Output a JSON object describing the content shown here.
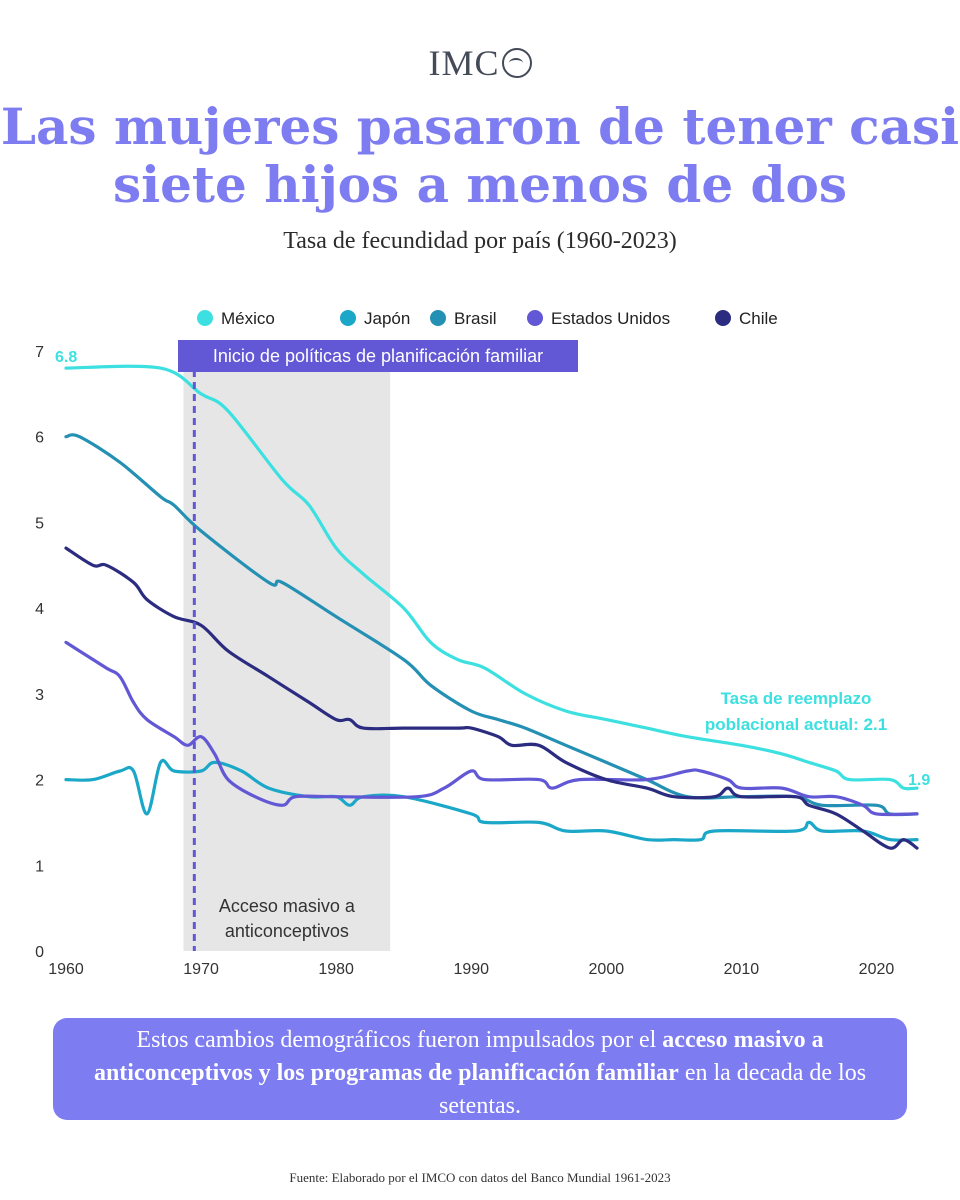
{
  "brand": {
    "name": "IMC"
  },
  "title": {
    "line1": "Las mujeres pasaron de tener casi",
    "line2": "siete hijos a menos de dos"
  },
  "subtitle": "Tasa de fecundidad por país (1960-2023)",
  "note": {
    "part1": "Estos cambios demográficos fueron impulsados por el ",
    "bold1": "acceso masivo a anticonceptivos y los programas de planificación familiar",
    "part2": " en la decada de los setentas."
  },
  "source": "Fuente: Elaborado por el IMCO con datos del Banco Mundial 1961-2023",
  "chart_data": {
    "type": "line",
    "xlim": [
      1960,
      2023
    ],
    "ylim": [
      0,
      7
    ],
    "x_ticks": [
      1960,
      1970,
      1980,
      1990,
      2000,
      2010,
      2020
    ],
    "y_ticks": [
      0,
      1,
      2,
      3,
      4,
      5,
      6,
      7
    ],
    "grid": false,
    "legend_position": "top",
    "series": [
      {
        "name": "México",
        "color": "#3de0e0",
        "points": [
          [
            1960,
            6.8
          ],
          [
            1967,
            6.8
          ],
          [
            1970,
            6.5
          ],
          [
            1972,
            6.3
          ],
          [
            1976,
            5.5
          ],
          [
            1978,
            5.2
          ],
          [
            1980,
            4.7
          ],
          [
            1982,
            4.4
          ],
          [
            1985,
            4.0
          ],
          [
            1987,
            3.6
          ],
          [
            1989,
            3.4
          ],
          [
            1991,
            3.3
          ],
          [
            1994,
            3.0
          ],
          [
            1997,
            2.8
          ],
          [
            2000,
            2.7
          ],
          [
            2003,
            2.6
          ],
          [
            2006,
            2.5
          ],
          [
            2010,
            2.4
          ],
          [
            2013,
            2.3
          ],
          [
            2015,
            2.2
          ],
          [
            2017,
            2.1
          ],
          [
            2018,
            2.0
          ],
          [
            2021,
            2.0
          ],
          [
            2022,
            1.9
          ],
          [
            2023,
            1.9
          ]
        ]
      },
      {
        "name": "Japón",
        "color": "#1ba8c8",
        "points": [
          [
            1960,
            2.0
          ],
          [
            1962,
            2.0
          ],
          [
            1964,
            2.1
          ],
          [
            1965,
            2.1
          ],
          [
            1966,
            1.6
          ],
          [
            1967,
            2.2
          ],
          [
            1968,
            2.1
          ],
          [
            1970,
            2.1
          ],
          [
            1971,
            2.2
          ],
          [
            1973,
            2.1
          ],
          [
            1975,
            1.9
          ],
          [
            1978,
            1.8
          ],
          [
            1980,
            1.8
          ],
          [
            1981,
            1.7
          ],
          [
            1982,
            1.8
          ],
          [
            1985,
            1.8
          ],
          [
            1990,
            1.6
          ],
          [
            1991,
            1.5
          ],
          [
            1995,
            1.5
          ],
          [
            1997,
            1.4
          ],
          [
            2000,
            1.4
          ],
          [
            2003,
            1.3
          ],
          [
            2005,
            1.3
          ],
          [
            2007,
            1.3
          ],
          [
            2008,
            1.4
          ],
          [
            2014,
            1.4
          ],
          [
            2015,
            1.5
          ],
          [
            2016,
            1.4
          ],
          [
            2019,
            1.4
          ],
          [
            2021,
            1.3
          ],
          [
            2023,
            1.3
          ]
        ]
      },
      {
        "name": "Brasil",
        "color": "#2390b4",
        "points": [
          [
            1960,
            6.0
          ],
          [
            1961,
            6.0
          ],
          [
            1964,
            5.7
          ],
          [
            1967,
            5.3
          ],
          [
            1968,
            5.2
          ],
          [
            1970,
            4.9
          ],
          [
            1975,
            4.3
          ],
          [
            1976,
            4.3
          ],
          [
            1980,
            3.9
          ],
          [
            1985,
            3.4
          ],
          [
            1987,
            3.1
          ],
          [
            1990,
            2.8
          ],
          [
            1992,
            2.7
          ],
          [
            1994,
            2.6
          ],
          [
            1997,
            2.4
          ],
          [
            2000,
            2.2
          ],
          [
            2003,
            2.0
          ],
          [
            2006,
            1.8
          ],
          [
            2010,
            1.8
          ],
          [
            2014,
            1.8
          ],
          [
            2016,
            1.7
          ],
          [
            2020,
            1.7
          ],
          [
            2021,
            1.6
          ],
          [
            2023,
            1.6
          ]
        ]
      },
      {
        "name": "Estados Unidos",
        "color": "#6257d4",
        "points": [
          [
            1960,
            3.6
          ],
          [
            1961,
            3.5
          ],
          [
            1963,
            3.3
          ],
          [
            1964,
            3.2
          ],
          [
            1965,
            2.9
          ],
          [
            1966,
            2.7
          ],
          [
            1968,
            2.5
          ],
          [
            1969,
            2.4
          ],
          [
            1970,
            2.5
          ],
          [
            1971,
            2.3
          ],
          [
            1972,
            2.0
          ],
          [
            1974,
            1.8
          ],
          [
            1976,
            1.7
          ],
          [
            1977,
            1.8
          ],
          [
            1980,
            1.8
          ],
          [
            1986,
            1.8
          ],
          [
            1988,
            1.9
          ],
          [
            1990,
            2.1
          ],
          [
            1991,
            2.0
          ],
          [
            1995,
            2.0
          ],
          [
            1996,
            1.9
          ],
          [
            1998,
            2.0
          ],
          [
            2003,
            2.0
          ],
          [
            2006,
            2.1
          ],
          [
            2007,
            2.1
          ],
          [
            2009,
            2.0
          ],
          [
            2010,
            1.9
          ],
          [
            2013,
            1.9
          ],
          [
            2015,
            1.8
          ],
          [
            2017,
            1.8
          ],
          [
            2019,
            1.7
          ],
          [
            2020,
            1.6
          ],
          [
            2023,
            1.6
          ]
        ]
      },
      {
        "name": "Chile",
        "color": "#2b2c80",
        "points": [
          [
            1960,
            4.7
          ],
          [
            1962,
            4.5
          ],
          [
            1963,
            4.5
          ],
          [
            1965,
            4.3
          ],
          [
            1966,
            4.1
          ],
          [
            1968,
            3.9
          ],
          [
            1970,
            3.8
          ],
          [
            1972,
            3.5
          ],
          [
            1975,
            3.2
          ],
          [
            1978,
            2.9
          ],
          [
            1980,
            2.7
          ],
          [
            1981,
            2.7
          ],
          [
            1982,
            2.6
          ],
          [
            1985,
            2.6
          ],
          [
            1989,
            2.6
          ],
          [
            1990,
            2.6
          ],
          [
            1992,
            2.5
          ],
          [
            1993,
            2.4
          ],
          [
            1995,
            2.4
          ],
          [
            1997,
            2.2
          ],
          [
            2000,
            2.0
          ],
          [
            2003,
            1.9
          ],
          [
            2005,
            1.8
          ],
          [
            2008,
            1.8
          ],
          [
            2009,
            1.9
          ],
          [
            2010,
            1.8
          ],
          [
            2014,
            1.8
          ],
          [
            2015,
            1.7
          ],
          [
            2017,
            1.6
          ],
          [
            2019,
            1.4
          ],
          [
            2021,
            1.2
          ],
          [
            2022,
            1.3
          ],
          [
            2023,
            1.2
          ]
        ]
      }
    ],
    "annotations": {
      "shaded_range": {
        "from": 1968.7,
        "to": 1984,
        "label_line1": "Acceso masivo a",
        "label_line2": "anticonceptivos"
      },
      "vline": {
        "x": 1969.5,
        "label": "Inicio de políticas de planificación familiar"
      },
      "start_label": "6.8",
      "end_label": "1.9",
      "replacement": {
        "line1": "Tasa de reemplazo",
        "line2": "poblacional actual: 2.1"
      }
    }
  }
}
